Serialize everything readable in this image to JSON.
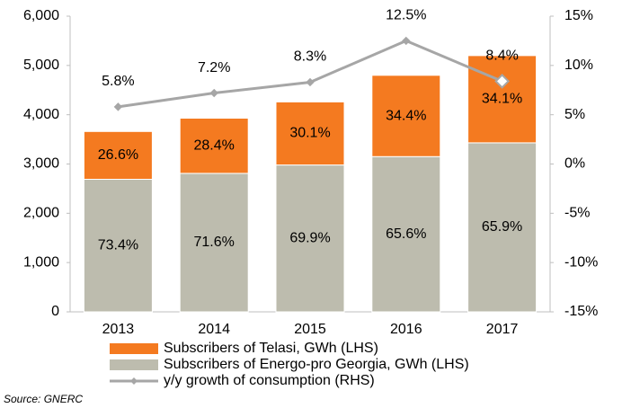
{
  "chart_data": {
    "type": "bar",
    "categories": [
      "2013",
      "2014",
      "2015",
      "2016",
      "2017"
    ],
    "stacked": true,
    "series": [
      {
        "name": "Subscribers of Energo-pro Georgia, GWh (LHS)",
        "color": "#bdbcae",
        "values": [
          2690,
          2810,
          2980,
          3150,
          3430
        ],
        "labels": [
          "73.4%",
          "71.6%",
          "69.9%",
          "65.6%",
          "65.9%"
        ]
      },
      {
        "name": "Subscribers of Telasi, GWh (LHS)",
        "color": "#f47a20",
        "values": [
          970,
          1120,
          1280,
          1650,
          1770
        ],
        "labels": [
          "26.6%",
          "28.4%",
          "30.1%",
          "34.4%",
          "34.1%"
        ]
      },
      {
        "name": "y/y growth of consumption (RHS)",
        "type": "line",
        "axis": "y2",
        "color": "#a6a6a6",
        "values": [
          5.8,
          7.2,
          8.3,
          12.5,
          8.4
        ],
        "value_labels": [
          "5.8%",
          "7.2%",
          "8.3%",
          "12.5%",
          "8.4%"
        ]
      }
    ],
    "ylim": [
      0,
      6000
    ],
    "yticks": [
      0,
      {
        "value": 1000,
        "label": "1,000"
      },
      {
        "value": 2000,
        "label": "2,000"
      },
      {
        "value": 3000,
        "label": "3,000"
      },
      {
        "value": 4000,
        "label": "4,000"
      },
      {
        "value": 5000,
        "label": "5,000"
      },
      {
        "value": 6000,
        "label": "6,000"
      }
    ],
    "y2lim": [
      -15,
      15
    ],
    "y2ticks": [
      {
        "value": -15,
        "label": "-15%"
      },
      {
        "value": -10,
        "label": "-10%"
      },
      {
        "value": -5,
        "label": "-5%"
      },
      {
        "value": 0,
        "label": "0%"
      },
      {
        "value": 5,
        "label": "5%"
      },
      {
        "value": 10,
        "label": "10%"
      },
      {
        "value": 15,
        "label": "15%"
      }
    ],
    "grid": false,
    "source": "Source: GNERC"
  }
}
